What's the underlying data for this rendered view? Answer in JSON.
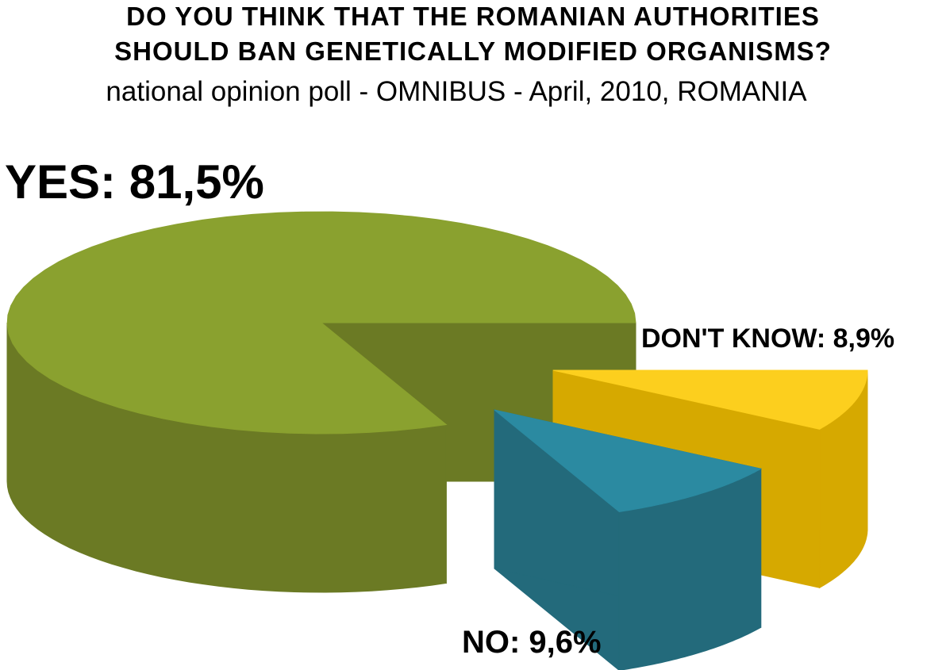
{
  "chart_data": {
    "type": "pie",
    "title_line1": "DO YOU THINK THAT THE ROMANIAN AUTHORITIES",
    "title_line2": "SHOULD BAN GENETICALLY MODIFIED ORGANISMS?",
    "subtitle": "national opinion poll - OMNIBUS - April, 2010, ROMANIA",
    "slices": [
      {
        "name": "YES",
        "value": 81.5,
        "label": "YES: 81,5%",
        "color": "#8aa12f",
        "dark": "#6b7a24"
      },
      {
        "name": "DON'T KNOW",
        "value": 8.9,
        "label": "DON'T KNOW: 8,9%",
        "color": "#fccf1e",
        "dark": "#d6a900"
      },
      {
        "name": "NO",
        "value": 9.6,
        "label": "NO: 9,6%",
        "color": "#2b8aa1",
        "dark": "#236a7b"
      }
    ]
  }
}
